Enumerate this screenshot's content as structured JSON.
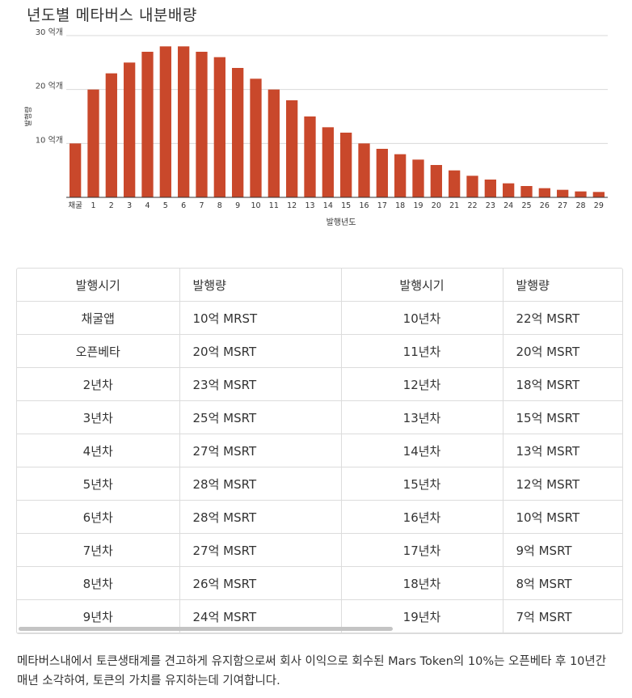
{
  "chart_data": {
    "type": "bar",
    "title": "년도별 메타버스 내분배량",
    "xlabel": "발행년도",
    "ylabel": "발행량",
    "categories": [
      "채굴",
      "1",
      "2",
      "3",
      "4",
      "5",
      "6",
      "7",
      "8",
      "9",
      "10",
      "11",
      "12",
      "13",
      "14",
      "15",
      "16",
      "17",
      "18",
      "19",
      "20",
      "21",
      "22",
      "23",
      "24",
      "25",
      "26",
      "27",
      "28",
      "29"
    ],
    "values": [
      10,
      20,
      23,
      25,
      27,
      28,
      28,
      27,
      26,
      24,
      22,
      20,
      18,
      15,
      13,
      12,
      10,
      9,
      8,
      7,
      6,
      5,
      4,
      3.3,
      2.6,
      2.1,
      1.7,
      1.4,
      1.1,
      1.0
    ],
    "ylim": [
      0,
      30
    ],
    "yticks": [
      {
        "value": 10,
        "label": "10 억개"
      },
      {
        "value": 20,
        "label": "20 억개"
      },
      {
        "value": 30,
        "label": "30 억개"
      }
    ],
    "grid": true,
    "color": "#c9482b"
  },
  "table": {
    "headers": [
      "발행시기",
      "발행량",
      "발행시기",
      "발행량"
    ],
    "rows": [
      [
        "채굴앱",
        "10억 MRST",
        "10년차",
        "22억 MSRT"
      ],
      [
        "오픈베타",
        "20억 MSRT",
        "11년차",
        "20억 MSRT"
      ],
      [
        "2년차",
        "23억 MSRT",
        "12년차",
        "18억 MSRT"
      ],
      [
        "3년차",
        "25억 MSRT",
        "13년차",
        "15억 MSRT"
      ],
      [
        "4년차",
        "27억 MSRT",
        "14년차",
        "13억 MSRT"
      ],
      [
        "5년차",
        "28억 MSRT",
        "15년차",
        "12억 MSRT"
      ],
      [
        "6년차",
        "28억 MSRT",
        "16년차",
        "10억 MSRT"
      ],
      [
        "7년차",
        "27억 MSRT",
        "17년차",
        "9억 MSRT"
      ],
      [
        "8년차",
        "26억 MSRT",
        "18년차",
        "8억 MSRT"
      ],
      [
        "9년차",
        "24억 MSRT",
        "19년차",
        "7억 MSRT"
      ]
    ]
  },
  "footnote": "메타버스내에서 토큰생태계를 견고하게 유지함으로써 회사 이익으로 회수된 Mars Token의 10%는 오픈베타 후 10년간 매년 소각하여, 토큰의 가치를 유지하는데 기여합니다."
}
